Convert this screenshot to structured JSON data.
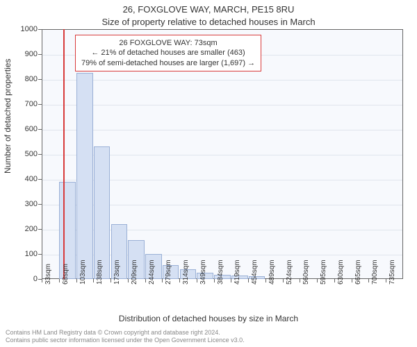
{
  "title1": "26, FOXGLOVE WAY, MARCH, PE15 8RU",
  "title2": "Size of property relative to detached houses in March",
  "ylabel": "Number of detached properties",
  "xlabel": "Distribution of detached houses by size in March",
  "chart": {
    "type": "histogram",
    "ylim": [
      0,
      1000
    ],
    "ytick_step": 100,
    "categories": [
      "33sqm",
      "68sqm",
      "103sqm",
      "138sqm",
      "173sqm",
      "209sqm",
      "244sqm",
      "279sqm",
      "314sqm",
      "349sqm",
      "384sqm",
      "419sqm",
      "454sqm",
      "489sqm",
      "524sqm",
      "560sqm",
      "595sqm",
      "630sqm",
      "665sqm",
      "700sqm",
      "735sqm"
    ],
    "values": [
      0,
      390,
      825,
      530,
      220,
      155,
      100,
      55,
      40,
      25,
      18,
      15,
      12,
      0,
      0,
      0,
      0,
      0,
      0,
      0,
      0
    ],
    "bar_fill": "#d5e0f3",
    "bar_stroke": "#9ab0d6",
    "bar_width": 0.95,
    "plot_bg": "#f7f9fd",
    "grid_color": "#e0e5ed",
    "axis_color": "#666666",
    "highlight_color": "#d83a3a",
    "highlight_category_index": 1
  },
  "callout": {
    "line1": "26 FOXGLOVE WAY: 73sqm",
    "line2": "← 21% of detached houses are smaller (463)",
    "line3": "79% of semi-detached houses are larger (1,697) →",
    "border_color": "#d83a3a"
  },
  "footer": {
    "line1": "Contains HM Land Registry data © Crown copyright and database right 2024.",
    "line2": "Contains public sector information licensed under the Open Government Licence v3.0."
  }
}
